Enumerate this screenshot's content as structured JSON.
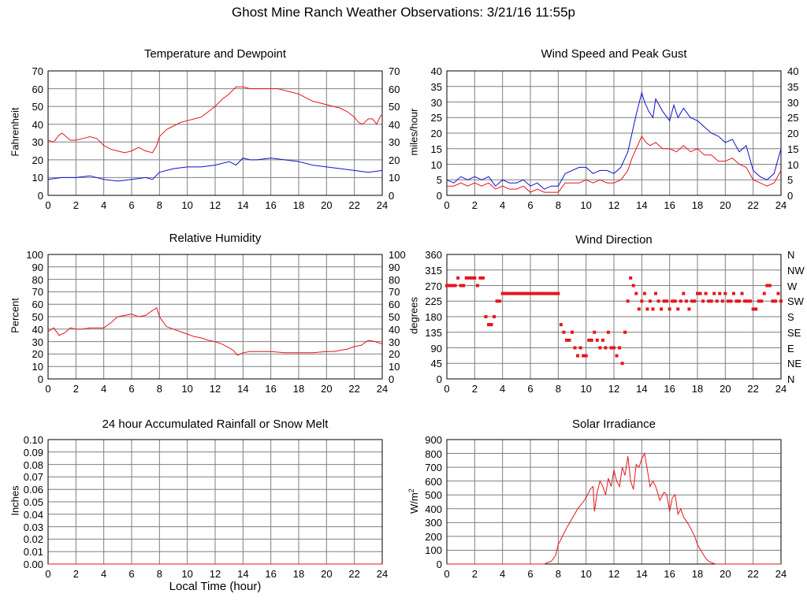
{
  "page": {
    "title": "Ghost Mine Ranch Weather Observations: 3/21/16 11:55p"
  },
  "colors": {
    "red": "#e8141b",
    "blue": "#1010d0",
    "grid": "#7f7f7f",
    "frame": "#000000"
  },
  "chart_data": [
    {
      "id": "temp",
      "type": "line",
      "title": "Temperature and Dewpoint",
      "xlabel": "",
      "ylabel": "Fahrenheit",
      "xlim": [
        0,
        24
      ],
      "ylim": [
        0,
        70
      ],
      "x_ticks": [
        "0",
        "2",
        "4",
        "6",
        "8",
        "10",
        "12",
        "14",
        "16",
        "18",
        "20",
        "22",
        "24"
      ],
      "y_ticks": [
        "0",
        "10",
        "20",
        "30",
        "40",
        "50",
        "60",
        "70"
      ],
      "right_ticks": [
        "0",
        "10",
        "20",
        "30",
        "40",
        "50",
        "60",
        "70"
      ],
      "grid": true,
      "series": [
        {
          "color": "red",
          "x": [
            0,
            0.4,
            0.8,
            1.0,
            1.3,
            1.6,
            2.0,
            2.5,
            3.0,
            3.5,
            4.0,
            4.5,
            5.0,
            5.5,
            6.0,
            6.5,
            7.0,
            7.5,
            7.8,
            8.0,
            8.5,
            9.0,
            9.5,
            10.0,
            10.5,
            11.0,
            11.5,
            12.0,
            12.5,
            13.0,
            13.5,
            13.8,
            14.0,
            14.5,
            15.0,
            15.5,
            16.0,
            16.5,
            17.0,
            17.5,
            18.0,
            18.5,
            19.0,
            19.5,
            20.0,
            20.5,
            21.0,
            21.5,
            22.0,
            22.3,
            22.6,
            23.0,
            23.3,
            23.6,
            23.9,
            24.0
          ],
          "y": [
            31,
            30,
            34,
            35,
            33,
            31,
            31,
            32,
            33,
            32,
            28,
            26,
            25,
            24,
            25,
            27,
            25,
            24,
            28,
            33,
            37,
            39,
            41,
            42,
            43,
            44,
            47,
            50,
            54,
            57,
            61,
            61,
            61,
            60,
            60,
            60,
            60,
            60,
            59,
            58,
            57,
            55,
            53,
            52,
            51,
            50,
            49,
            47,
            44,
            41,
            40,
            43,
            43,
            40,
            45,
            45
          ]
        },
        {
          "color": "blue",
          "x": [
            0,
            1,
            2,
            3,
            4,
            5,
            6,
            7,
            7.5,
            8,
            9,
            10,
            11,
            12,
            13,
            13.5,
            14,
            14.5,
            15,
            16,
            17,
            18,
            19,
            20,
            21,
            22,
            23,
            24
          ],
          "y": [
            9,
            10,
            10,
            11,
            9,
            8,
            9,
            10,
            9,
            13,
            15,
            16,
            16,
            17,
            19,
            17,
            21,
            20,
            20,
            21,
            20,
            19,
            17,
            16,
            15,
            14,
            13,
            14
          ]
        }
      ]
    },
    {
      "id": "wind",
      "type": "line",
      "title": "Wind Speed and Peak Gust",
      "xlabel": "",
      "ylabel": "miles/hour",
      "xlim": [
        0,
        24
      ],
      "ylim": [
        0,
        40
      ],
      "x_ticks": [
        "0",
        "2",
        "4",
        "6",
        "8",
        "10",
        "12",
        "14",
        "16",
        "18",
        "20",
        "22",
        "24"
      ],
      "y_ticks": [
        "0",
        "5",
        "10",
        "15",
        "20",
        "25",
        "30",
        "35",
        "40"
      ],
      "right_ticks": [
        "0",
        "5",
        "10",
        "15",
        "20",
        "25",
        "30",
        "35",
        "40"
      ],
      "grid": true,
      "series": [
        {
          "color": "blue",
          "x": [
            0,
            0.5,
            1,
            1.5,
            2,
            2.5,
            3,
            3.5,
            4,
            4.5,
            5,
            5.5,
            6,
            6.5,
            7,
            7.5,
            8,
            8.5,
            9,
            9.5,
            10,
            10.5,
            11,
            11.5,
            12,
            12.5,
            13,
            13.3,
            13.6,
            14,
            14.2,
            14.5,
            14.8,
            15,
            15.5,
            16,
            16.3,
            16.6,
            17,
            17.5,
            18,
            18.5,
            19,
            19.5,
            20,
            20.5,
            21,
            21.5,
            22,
            22.5,
            23,
            23.5,
            24
          ],
          "y": [
            5,
            4,
            6,
            5,
            6,
            5,
            6,
            3,
            5,
            4,
            4,
            5,
            3,
            4,
            2,
            3,
            3,
            7,
            8,
            9,
            9,
            7,
            8,
            8,
            7,
            9,
            14,
            20,
            26,
            33,
            30,
            27,
            25,
            31,
            27,
            24,
            29,
            25,
            28,
            25,
            24,
            22,
            20,
            19,
            17,
            18,
            14,
            16,
            8,
            6,
            5,
            7,
            15
          ]
        },
        {
          "color": "red",
          "x": [
            0,
            0.5,
            1,
            1.5,
            2,
            2.5,
            3,
            3.5,
            4,
            4.5,
            5,
            5.5,
            6,
            6.5,
            7,
            7.5,
            8,
            8.5,
            9,
            9.5,
            10,
            10.5,
            11,
            11.5,
            12,
            12.5,
            13,
            13.3,
            13.6,
            14,
            14.3,
            14.6,
            15,
            15.5,
            16,
            16.5,
            17,
            17.5,
            18,
            18.5,
            19,
            19.5,
            20,
            20.5,
            21,
            21.5,
            22,
            22.5,
            23,
            23.5,
            24
          ],
          "y": [
            3,
            3,
            4,
            3,
            4,
            3,
            4,
            2,
            3,
            2,
            2,
            3,
            1,
            2,
            1,
            1,
            1,
            4,
            4,
            4,
            5,
            4,
            5,
            4,
            4,
            5,
            8,
            12,
            15,
            19,
            17,
            16,
            17,
            15,
            15,
            14,
            16,
            14,
            15,
            13,
            13,
            11,
            11,
            12,
            10,
            9,
            5,
            4,
            3,
            4,
            8
          ]
        }
      ]
    },
    {
      "id": "rh",
      "type": "line",
      "title": "Relative Humidity",
      "xlabel": "",
      "ylabel": "Percent",
      "xlim": [
        0,
        24
      ],
      "ylim": [
        0,
        100
      ],
      "x_ticks": [
        "0",
        "2",
        "4",
        "6",
        "8",
        "10",
        "12",
        "14",
        "16",
        "18",
        "20",
        "22",
        "24"
      ],
      "y_ticks": [
        "0",
        "10",
        "20",
        "30",
        "40",
        "50",
        "60",
        "70",
        "80",
        "90",
        "100"
      ],
      "right_ticks": [
        "0",
        "10",
        "20",
        "30",
        "40",
        "50",
        "60",
        "70",
        "80",
        "90",
        "100"
      ],
      "grid": true,
      "series": [
        {
          "color": "red",
          "x": [
            0,
            0.4,
            0.8,
            1.2,
            1.6,
            2,
            2.5,
            3,
            3.5,
            4,
            4.5,
            5,
            5.5,
            6,
            6.5,
            7,
            7.5,
            7.8,
            8,
            8.5,
            9,
            9.5,
            10,
            10.5,
            11,
            11.5,
            12,
            12.5,
            13,
            13.3,
            13.6,
            14,
            14.5,
            15,
            16,
            17,
            18,
            19,
            20,
            20.5,
            21,
            21.5,
            22,
            22.5,
            23,
            23.5,
            24
          ],
          "y": [
            38,
            41,
            35,
            37,
            41,
            40,
            40,
            41,
            41,
            41,
            45,
            50,
            51,
            52,
            50,
            51,
            55,
            57,
            50,
            42,
            40,
            38,
            36,
            34,
            33,
            31,
            30,
            28,
            25,
            23,
            19,
            21,
            22,
            22,
            22,
            21,
            21,
            21,
            22,
            22,
            23,
            24,
            26,
            27,
            31,
            30,
            28
          ]
        }
      ]
    },
    {
      "id": "dir",
      "type": "scatter",
      "title": "Wind Direction",
      "xlabel": "",
      "ylabel": "degrees",
      "xlim": [
        0,
        24
      ],
      "ylim": [
        0,
        360
      ],
      "x_ticks": [
        "0",
        "2",
        "4",
        "6",
        "8",
        "10",
        "12",
        "14",
        "16",
        "18",
        "20",
        "22",
        "24"
      ],
      "y_ticks": [
        "0",
        "45",
        "90",
        "135",
        "180",
        "225",
        "270",
        "315",
        "360"
      ],
      "right_ticks": [
        "N",
        "NE",
        "E",
        "SE",
        "S",
        "SW",
        "W",
        "NW",
        "N"
      ],
      "grid": true,
      "series": [
        {
          "color": "red",
          "x": [
            0,
            0.2,
            0.4,
            0.6,
            0.8,
            1.0,
            1.2,
            1.4,
            1.6,
            1.8,
            2.0,
            2.2,
            2.4,
            2.6,
            2.8,
            3.0,
            3.2,
            3.4,
            3.6,
            3.8,
            4.0,
            4.2,
            4.4,
            4.6,
            4.8,
            5.0,
            5.2,
            5.4,
            5.6,
            5.8,
            6.0,
            6.2,
            6.4,
            6.6,
            6.8,
            7.0,
            7.2,
            7.4,
            7.6,
            7.8,
            8.0,
            8.2,
            8.4,
            8.6,
            8.8,
            9.0,
            9.2,
            9.4,
            9.6,
            9.8,
            10.0,
            10.2,
            10.4,
            10.6,
            10.8,
            11.0,
            11.2,
            11.4,
            11.6,
            11.8,
            12.0,
            12.2,
            12.4,
            12.6,
            12.8,
            13.0,
            13.2,
            13.4,
            13.6,
            13.8,
            14.0,
            14.2,
            14.4,
            14.6,
            14.8,
            15.0,
            15.2,
            15.4,
            15.6,
            15.8,
            16.0,
            16.2,
            16.4,
            16.6,
            16.8,
            17.0,
            17.2,
            17.4,
            17.6,
            17.8,
            18.0,
            18.2,
            18.4,
            18.6,
            18.8,
            19.0,
            19.2,
            19.4,
            19.6,
            19.8,
            20.0,
            20.2,
            20.4,
            20.6,
            20.8,
            21.0,
            21.2,
            21.4,
            21.6,
            21.8,
            22.0,
            22.2,
            22.4,
            22.6,
            22.8,
            23.0,
            23.2,
            23.4,
            23.6,
            23.8,
            24.0
          ],
          "y": [
            270,
            270,
            270,
            270,
            292,
            270,
            270,
            292,
            292,
            292,
            292,
            270,
            292,
            292,
            180,
            157,
            157,
            180,
            225,
            225,
            247,
            247,
            247,
            247,
            247,
            247,
            247,
            247,
            247,
            247,
            247,
            247,
            247,
            247,
            247,
            247,
            247,
            247,
            247,
            247,
            247,
            157,
            135,
            112,
            112,
            135,
            90,
            67,
            90,
            67,
            67,
            112,
            112,
            135,
            112,
            90,
            112,
            90,
            135,
            90,
            90,
            67,
            90,
            45,
            135,
            225,
            292,
            270,
            247,
            202,
            225,
            247,
            202,
            225,
            202,
            247,
            225,
            202,
            225,
            225,
            202,
            225,
            225,
            202,
            225,
            247,
            225,
            202,
            225,
            225,
            247,
            247,
            225,
            247,
            225,
            225,
            247,
            225,
            247,
            225,
            247,
            225,
            225,
            247,
            225,
            225,
            247,
            225,
            225,
            225,
            202,
            202,
            225,
            225,
            247,
            270,
            270,
            225,
            225,
            247,
            225
          ],
          "marker": "square"
        }
      ]
    },
    {
      "id": "rain",
      "type": "line",
      "title": "24 hour Accumulated Rainfall or Snow Melt",
      "xlabel": "Local Time (hour)",
      "ylabel": "Inches",
      "xlim": [
        0,
        24
      ],
      "ylim": [
        0,
        0.1
      ],
      "x_ticks": [
        "0",
        "2",
        "4",
        "6",
        "8",
        "10",
        "12",
        "14",
        "16",
        "18",
        "20",
        "22",
        "24"
      ],
      "y_ticks": [
        "0.00",
        "0.01",
        "0.02",
        "0.03",
        "0.04",
        "0.05",
        "0.06",
        "0.07",
        "0.08",
        "0.09",
        "0.10"
      ],
      "right_ticks": [],
      "grid": true,
      "series": [
        {
          "color": "red",
          "x": [
            0,
            24
          ],
          "y": [
            0,
            0
          ]
        }
      ]
    },
    {
      "id": "solar",
      "type": "line",
      "title": "Solar Irradiance",
      "xlabel": "",
      "ylabel": "W/m",
      "ylabel_sup": "2",
      "xlim": [
        0,
        24
      ],
      "ylim": [
        0,
        900
      ],
      "x_ticks": [
        "0",
        "2",
        "4",
        "6",
        "8",
        "10",
        "12",
        "14",
        "16",
        "18",
        "20",
        "22",
        "24"
      ],
      "y_ticks": [
        "0",
        "100",
        "200",
        "300",
        "400",
        "500",
        "600",
        "700",
        "800",
        "900"
      ],
      "right_ticks": [],
      "grid": true,
      "series": [
        {
          "color": "red",
          "x": [
            0,
            7.0,
            7.5,
            7.8,
            8.0,
            8.3,
            8.6,
            9.0,
            9.4,
            9.8,
            10.0,
            10.3,
            10.5,
            10.6,
            10.8,
            11.0,
            11.2,
            11.4,
            11.6,
            11.8,
            12.0,
            12.2,
            12.4,
            12.6,
            12.8,
            13.0,
            13.2,
            13.4,
            13.6,
            13.8,
            14.0,
            14.2,
            14.4,
            14.6,
            14.8,
            15.0,
            15.3,
            15.6,
            15.8,
            16.0,
            16.2,
            16.4,
            16.6,
            16.8,
            17.0,
            17.4,
            17.8,
            18.0,
            18.3,
            18.6,
            18.8,
            19.0,
            19.3,
            20,
            24
          ],
          "y": [
            0,
            0,
            20,
            60,
            140,
            200,
            260,
            330,
            400,
            450,
            480,
            540,
            560,
            380,
            520,
            600,
            560,
            500,
            620,
            560,
            680,
            600,
            560,
            700,
            640,
            780,
            600,
            540,
            720,
            700,
            760,
            800,
            680,
            560,
            600,
            560,
            460,
            520,
            500,
            380,
            480,
            500,
            360,
            400,
            340,
            280,
            200,
            140,
            90,
            40,
            20,
            10,
            0,
            0,
            0
          ]
        }
      ]
    }
  ]
}
